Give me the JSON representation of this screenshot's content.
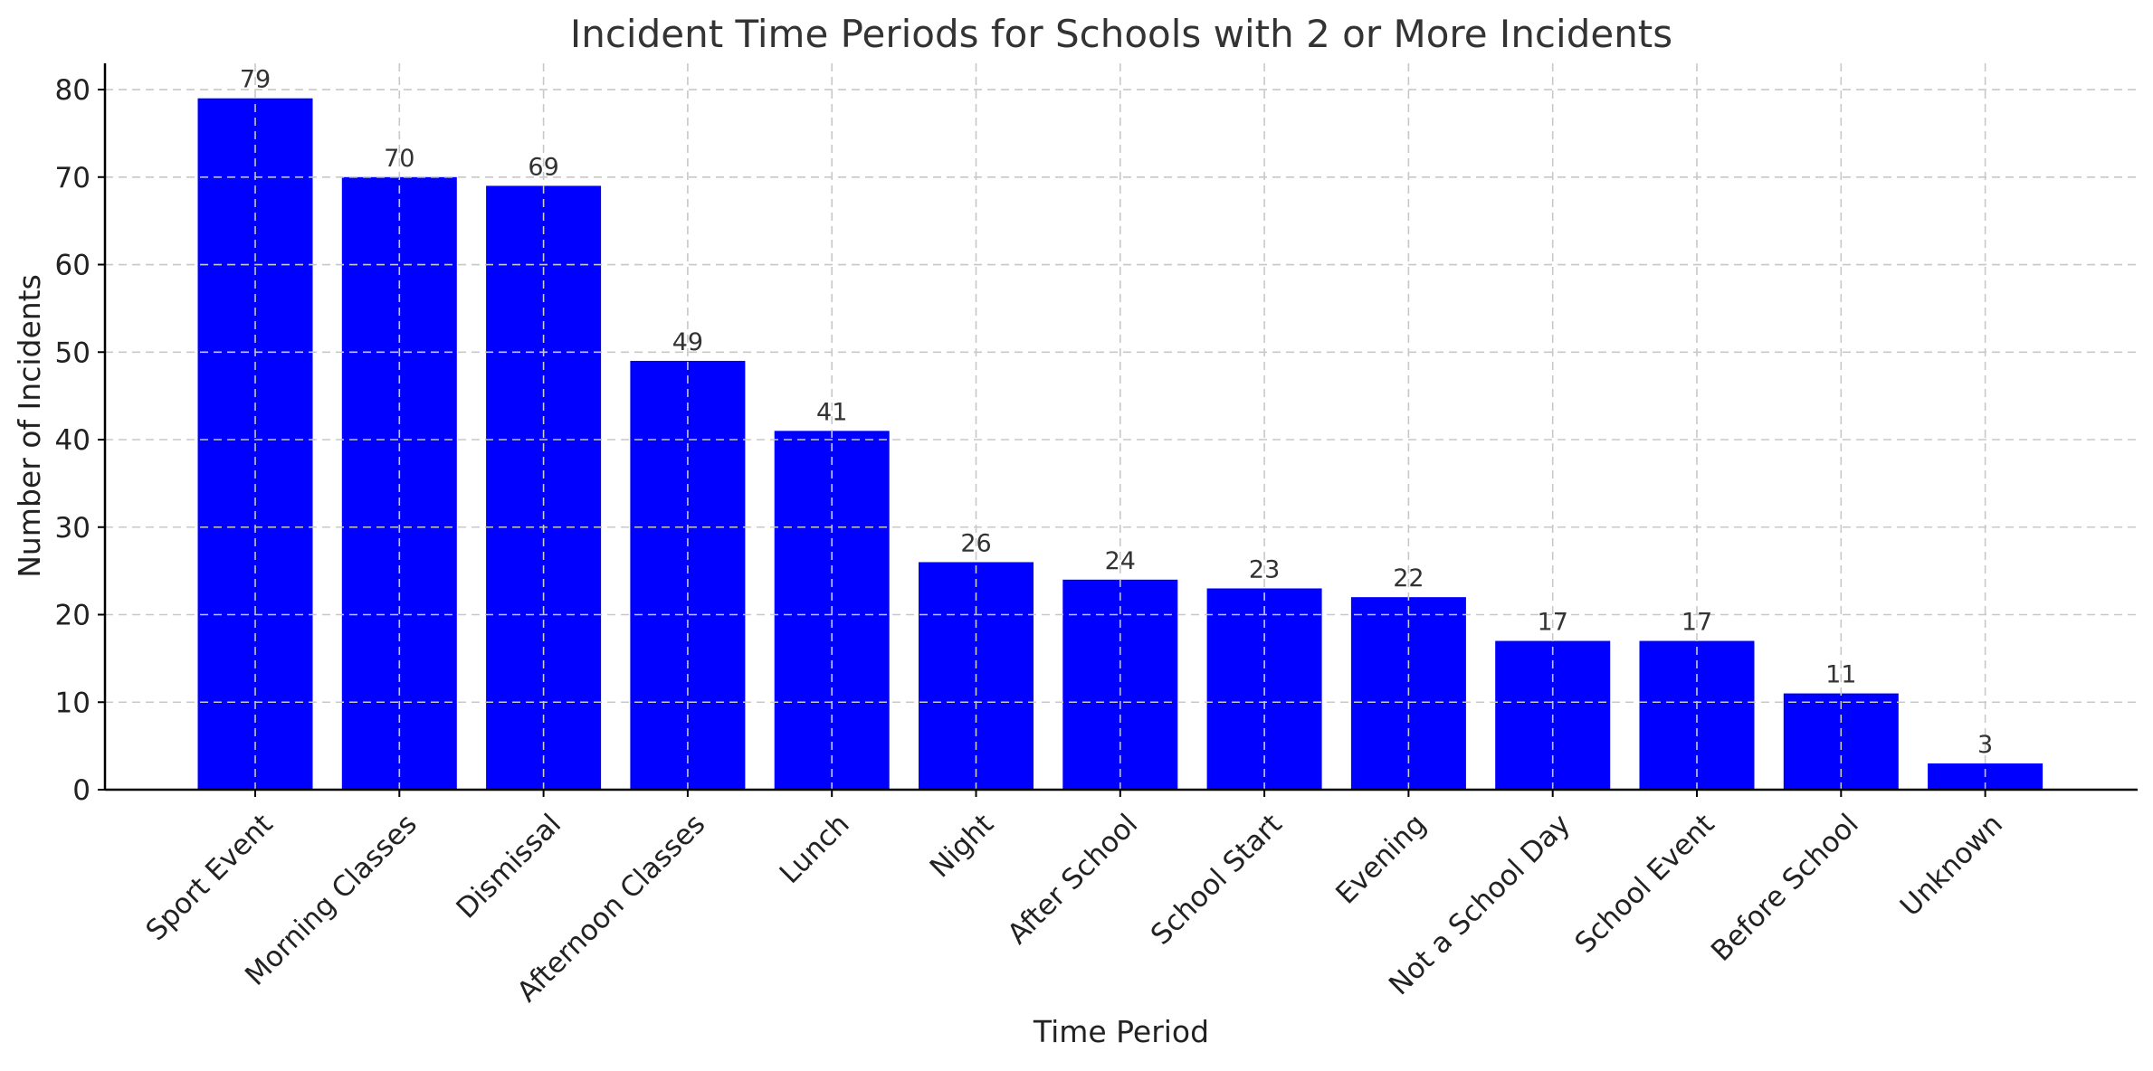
{
  "chart_data": {
    "type": "bar",
    "title": "Incident Time Periods for Schools with 2 or More Incidents",
    "xlabel": "Time Period",
    "ylabel": "Number of Incidents",
    "categories": [
      "Sport Event",
      "Morning Classes",
      "Dismissal",
      "Afternoon Classes",
      "Lunch",
      "Night",
      "After School",
      "School Start",
      "Evening",
      "Not a School Day",
      "School Event",
      "Before School",
      "Unknown"
    ],
    "values": [
      79,
      70,
      69,
      49,
      41,
      26,
      24,
      23,
      22,
      17,
      17,
      11,
      3
    ],
    "data_labels": [
      "79",
      "70",
      "69",
      "49",
      "41",
      "26",
      "24",
      "23",
      "22",
      "17",
      "17",
      "11",
      "3"
    ],
    "yticks": [
      "0",
      "10",
      "20",
      "30",
      "40",
      "50",
      "60",
      "70",
      "80"
    ],
    "ylim": [
      0,
      83
    ],
    "grid": true,
    "legend": "none",
    "bar_color": "#0000ff"
  }
}
